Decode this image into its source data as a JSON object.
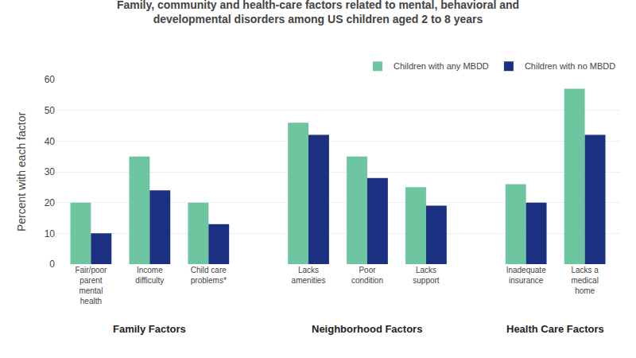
{
  "chart_data": {
    "type": "bar",
    "title": "Family, community and health-care factors related to mental, behavioral and\ndevelopmental disorders among US children aged 2 to 8 years",
    "ylabel": "Percent with each factor",
    "categories": [
      "Fair/poor\nparent\nmental\nhealth",
      "Income\ndifficulty",
      "Child care\nproblems*",
      "Lacks\namenities",
      "Poor\ncondition",
      "Lacks\nsupport",
      "Inadequate\ninsurance",
      "Lacks a\nmedical\nhome"
    ],
    "category_groups": [
      "Family Factors",
      "Family Factors",
      "Family Factors",
      "Neighborhood Factors",
      "Neighborhood Factors",
      "Neighborhood Factors",
      "Health Care Factors",
      "Health Care Factors"
    ],
    "series": [
      {
        "name": "Children with any MBDD",
        "color": "#6EC6A1",
        "values": [
          20,
          35,
          20,
          46,
          35,
          25,
          26,
          57
        ]
      },
      {
        "name": "Children with no MBDD",
        "color": "#1B3080",
        "values": [
          10,
          24,
          13,
          42,
          28,
          19,
          20,
          42
        ]
      }
    ],
    "ylim": [
      0,
      60
    ],
    "yticks": [
      0,
      10,
      20,
      30,
      40,
      50,
      60
    ],
    "grid": true,
    "legend": "upper right"
  }
}
